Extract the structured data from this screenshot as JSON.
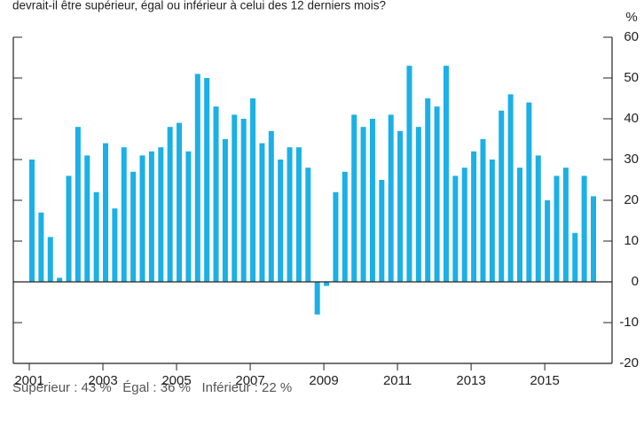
{
  "chart_data": {
    "type": "bar",
    "title": "devrait-il être supérieur, égal ou inférieur à celui des 12 derniers mois?",
    "y_unit": "%",
    "note": "Supérieur : 43 %   Égal : 36 %   Inférieur : 22 %",
    "categories": [
      "2001",
      null,
      null,
      null,
      null,
      null,
      null,
      null,
      "2003",
      null,
      null,
      null,
      null,
      null,
      null,
      null,
      "2005",
      null,
      null,
      null,
      null,
      null,
      null,
      null,
      "2007",
      null,
      null,
      null,
      null,
      null,
      null,
      null,
      "2009",
      null,
      null,
      null,
      null,
      null,
      null,
      null,
      "2011",
      null,
      null,
      null,
      null,
      null,
      null,
      null,
      "2013",
      null,
      null,
      null,
      null,
      null,
      null,
      null,
      "2015",
      null,
      null,
      null,
      null,
      null
    ],
    "values": [
      30,
      17,
      11,
      1,
      26,
      38,
      31,
      22,
      34,
      18,
      33,
      27,
      31,
      32,
      33,
      38,
      39,
      32,
      51,
      50,
      43,
      35,
      41,
      40,
      45,
      34,
      37,
      30,
      33,
      33,
      28,
      -8,
      -1,
      22,
      27,
      41,
      38,
      40,
      25,
      41,
      37,
      53,
      38,
      45,
      43,
      53,
      26,
      28,
      32,
      35,
      30,
      42,
      46,
      28,
      44,
      31,
      20,
      26,
      28,
      12,
      26,
      21
    ],
    "color": "#1bb0e6",
    "ylim": [
      -20,
      60
    ],
    "yticks": [
      -20,
      -10,
      0,
      10,
      20,
      30,
      40,
      50,
      60
    ]
  }
}
